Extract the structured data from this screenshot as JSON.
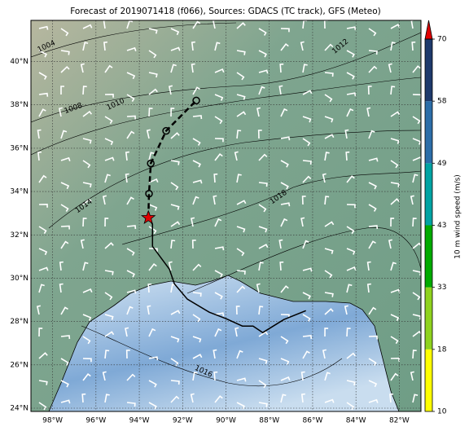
{
  "title": "Forecast of 2019071418 (f066), Sources: GDACS (TC track), GFS (Meteo)",
  "map": {
    "xlim": [
      -99,
      -81
    ],
    "ylim": [
      23.85,
      41.9
    ],
    "xticks": [
      {
        "value": -98,
        "label": "98°W"
      },
      {
        "value": -96,
        "label": "96°W"
      },
      {
        "value": -94,
        "label": "94°W"
      },
      {
        "value": -92,
        "label": "92°W"
      },
      {
        "value": -90,
        "label": "90°W"
      },
      {
        "value": -88,
        "label": "88°W"
      },
      {
        "value": -86,
        "label": "86°W"
      },
      {
        "value": -84,
        "label": "84°W"
      },
      {
        "value": -82,
        "label": "82°W"
      }
    ],
    "yticks": [
      {
        "value": 24,
        "label": "24°N"
      },
      {
        "value": 26,
        "label": "26°N"
      },
      {
        "value": 28,
        "label": "28°N"
      },
      {
        "value": 30,
        "label": "30°N"
      },
      {
        "value": 32,
        "label": "32°N"
      },
      {
        "value": 34,
        "label": "34°N"
      },
      {
        "value": 36,
        "label": "36°N"
      },
      {
        "value": 38,
        "label": "38°N"
      },
      {
        "value": 40,
        "label": "40°N"
      }
    ],
    "grid": true,
    "contour_labels": [
      1004,
      1008,
      1010,
      1012,
      1014,
      1016,
      1018
    ]
  },
  "track": {
    "observed": {
      "lon": [
        -93.58,
        -93.39,
        -93.39,
        -92.61,
        -92.38,
        -91.78,
        -90.77,
        -89.99,
        -89.24,
        -88.75,
        -88.3,
        -87.33,
        -86.31
      ],
      "lat": [
        32.79,
        32.49,
        31.47,
        30.42,
        29.74,
        29.03,
        28.43,
        28.13,
        27.79,
        27.79,
        27.49,
        28.09,
        28.5
      ]
    },
    "forecast": {
      "lon": [
        -93.55,
        -93.47,
        -92.76,
        -91.37
      ],
      "lat": [
        33.9,
        35.3,
        36.8,
        38.2
      ]
    },
    "star_color": "#e00000"
  },
  "colorbar": {
    "label": "10 m wind speed (m/s)",
    "ticks": [
      10,
      18,
      33,
      43,
      49,
      58,
      70
    ],
    "colors": [
      "#ffff00",
      "#8fd21e",
      "#00aa00",
      "#00a3a3",
      "#2c6ea8",
      "#1e3a6c"
    ],
    "extend_color": "#e00000"
  }
}
